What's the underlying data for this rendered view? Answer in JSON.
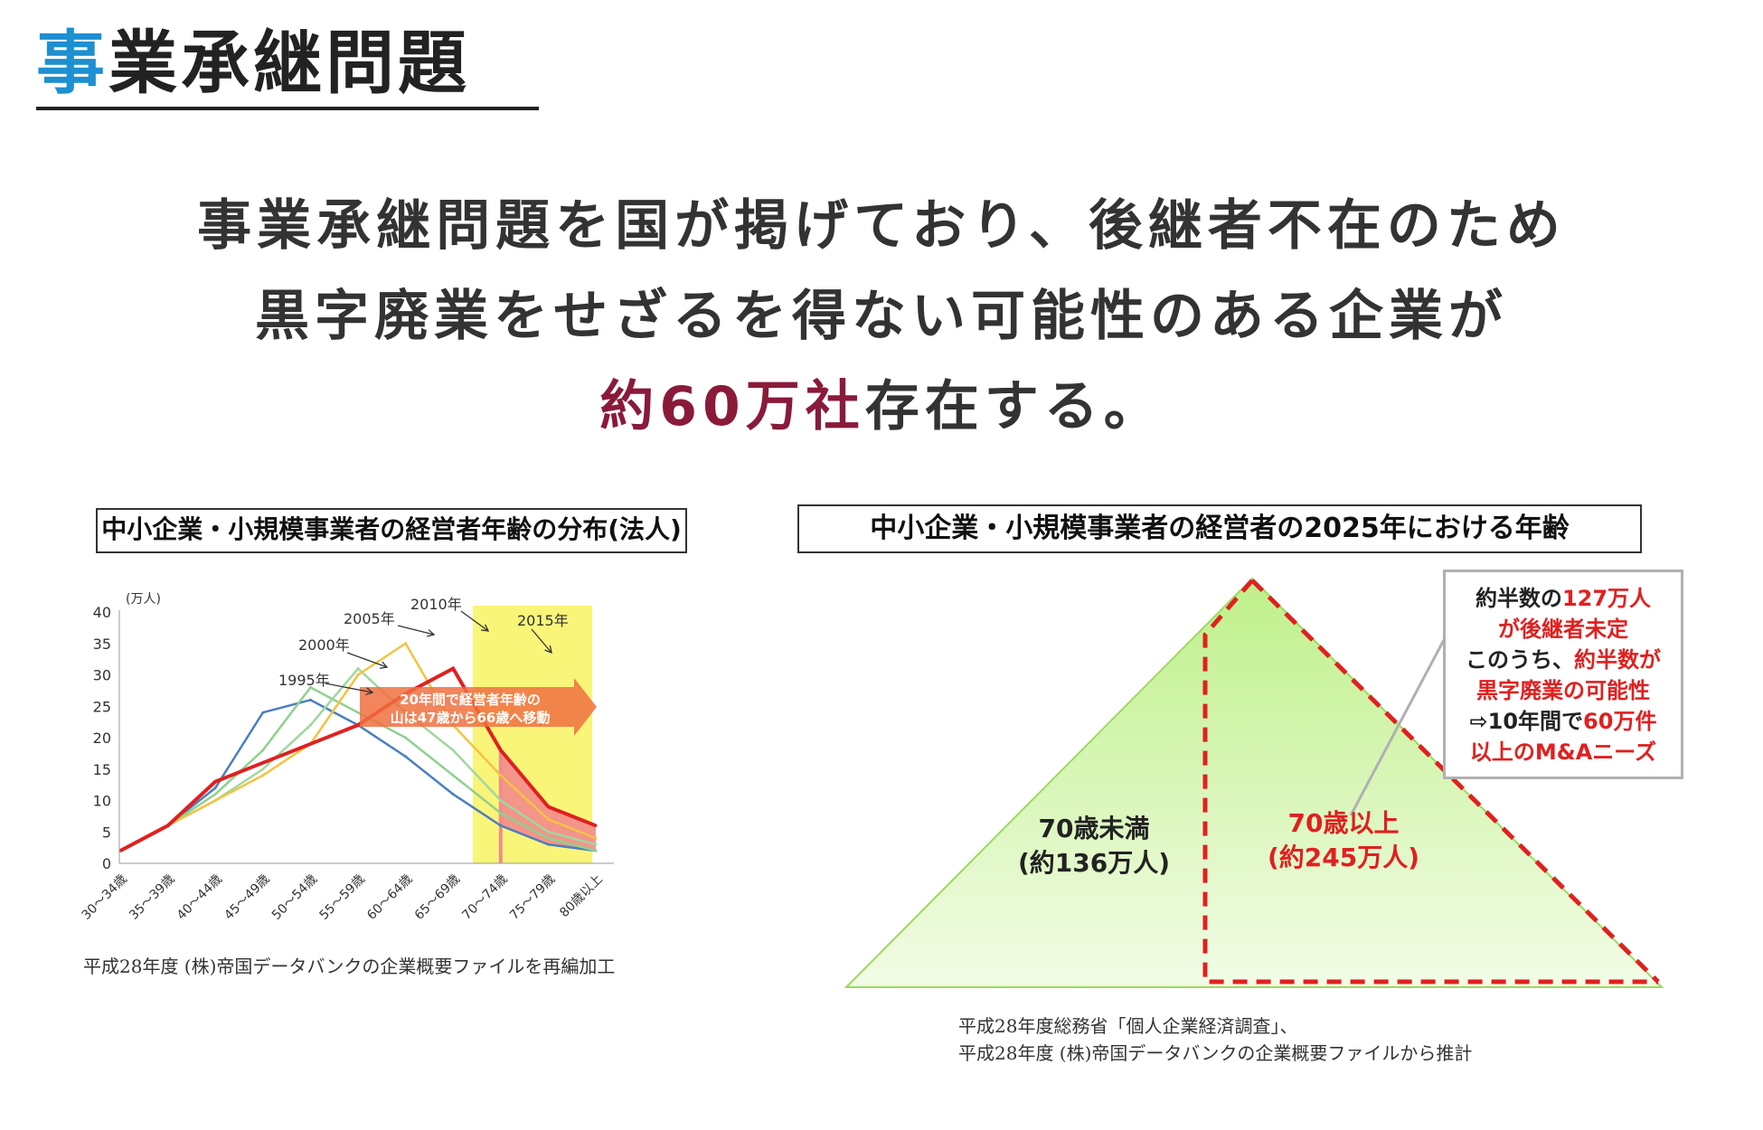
{
  "page": {
    "title_accent": "事",
    "title_rest": "業承継問題",
    "headline_line1": "事業承継問題を国が掲げており、後継者不在のため",
    "headline_line2": "黒字廃業をせざるを得ない可能性のある企業が",
    "headline_em": "約60万社",
    "headline_tail": "存在する。"
  },
  "colors": {
    "accent": "#1e8fd0",
    "emphasis": "#8a1a3a",
    "red": "#e02020"
  },
  "left_panel": {
    "title": "中小企業・小規模事業者の経営者年齢の分布(法人)",
    "source": "平成28年度 (株)帝国データバンクの企業概要ファイルを再編加工",
    "arrow_text_line1": "20年間で経営者年齢の",
    "arrow_text_line2": "山は47歳から66歳へ移動"
  },
  "right_panel": {
    "title": "中小企業・小規模事業者の経営者の2025年における年齢",
    "left_label_line1": "70歳未満",
    "left_label_line2": "(約136万人)",
    "right_label_line1": "70歳以上",
    "right_label_line2": "(約245万人)",
    "note": [
      {
        "a": "約半数の",
        "b": "127万人"
      },
      {
        "a": "",
        "b": "が後継者未定"
      },
      {
        "a": "このうち、",
        "b": "約半数が"
      },
      {
        "a": "",
        "b": "黒字廃業の可能性"
      },
      {
        "a": "⇨10年間で",
        "b": "60万件"
      },
      {
        "a": "",
        "b": "以上のM&Aニーズ"
      }
    ],
    "source_line1": "平成28年度総務省「個人企業経済調査」、",
    "source_line2": "平成28年度 (株)帝国データバンクの企業概要ファイルから推計"
  },
  "chart_data": [
    {
      "type": "line",
      "title": "中小企業・小規模事業者の経営者年齢の分布(法人)",
      "ylabel": "(万人)",
      "xlabel": "",
      "ylim": [
        0,
        40
      ],
      "yticks": [
        0,
        5,
        10,
        15,
        20,
        25,
        30,
        35,
        40
      ],
      "grid": false,
      "categories": [
        "30～34歳",
        "35～39歳",
        "40～44歳",
        "45～49歳",
        "50～54歳",
        "55～59歳",
        "60～64歳",
        "65～69歳",
        "70～74歳",
        "75～79歳",
        "80歳以上"
      ],
      "series": [
        {
          "name": "1995年",
          "color": "#4a7fc0",
          "values": [
            2,
            6,
            12,
            24,
            26,
            22,
            17,
            11,
            6,
            3,
            2
          ]
        },
        {
          "name": "2000年",
          "color": "#8fd08f",
          "values": [
            2,
            6,
            11,
            18,
            28,
            24,
            20,
            14,
            8,
            4,
            2
          ]
        },
        {
          "name": "2005年",
          "color": "#a0d8a0",
          "values": [
            2,
            6,
            10,
            15,
            22,
            31,
            24,
            18,
            10,
            5,
            3
          ]
        },
        {
          "name": "2010年",
          "color": "#f4c242",
          "values": [
            2,
            6,
            10,
            14,
            19,
            30,
            35,
            22,
            14,
            7,
            4
          ]
        },
        {
          "name": "2015年",
          "color": "#e02020",
          "values": [
            2,
            6,
            13,
            16,
            19,
            22,
            27,
            31,
            18,
            9,
            6
          ]
        }
      ],
      "annotations": [
        "1995年",
        "2000年",
        "2005年",
        "2010年",
        "2015年"
      ]
    },
    {
      "type": "area",
      "title": "中小企業・小規模事業者の経営者の2025年における年齢",
      "categories": [
        "70歳未満",
        "70歳以上"
      ],
      "values": [
        136,
        245
      ],
      "unit": "万人"
    }
  ]
}
